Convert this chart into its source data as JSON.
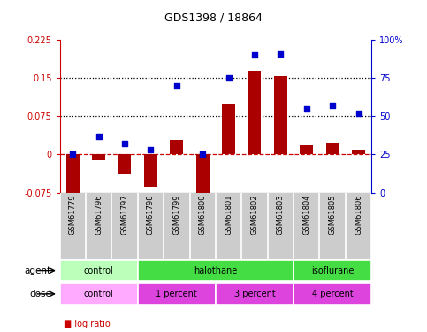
{
  "title": "GDS1398 / 18864",
  "samples": [
    "GSM61779",
    "GSM61796",
    "GSM61797",
    "GSM61798",
    "GSM61799",
    "GSM61800",
    "GSM61801",
    "GSM61802",
    "GSM61803",
    "GSM61804",
    "GSM61805",
    "GSM61806"
  ],
  "log_ratio": [
    -0.075,
    -0.012,
    -0.038,
    -0.063,
    0.028,
    -0.088,
    0.1,
    0.165,
    0.153,
    0.018,
    0.024,
    0.009
  ],
  "pct_rank": [
    25,
    37,
    32,
    28,
    70,
    25,
    75,
    90,
    91,
    55,
    57,
    52
  ],
  "ylim_left": [
    -0.075,
    0.225
  ],
  "ylim_right": [
    0,
    100
  ],
  "yticks_left": [
    -0.075,
    0,
    0.075,
    0.15,
    0.225
  ],
  "ytick_labels_left": [
    "-0.075",
    "0",
    "0.075",
    "0.15",
    "0.225"
  ],
  "yticks_right": [
    0,
    25,
    50,
    75,
    100
  ],
  "ytick_labels_right": [
    "0",
    "25",
    "50",
    "75",
    "100%"
  ],
  "hlines": [
    0.075,
    0.15
  ],
  "bar_color": "#aa0000",
  "dot_color": "#0000cc",
  "zero_line_color": "#cc0000",
  "agent_groups": [
    {
      "label": "control",
      "start": 0,
      "end": 3,
      "color": "#bbffbb"
    },
    {
      "label": "halothane",
      "start": 3,
      "end": 9,
      "color": "#44dd44"
    },
    {
      "label": "isoflurane",
      "start": 9,
      "end": 12,
      "color": "#44dd44"
    }
  ],
  "dose_groups": [
    {
      "label": "control",
      "start": 0,
      "end": 3,
      "color": "#ffaaff"
    },
    {
      "label": "1 percent",
      "start": 3,
      "end": 6,
      "color": "#dd44dd"
    },
    {
      "label": "3 percent",
      "start": 6,
      "end": 9,
      "color": "#dd44dd"
    },
    {
      "label": "4 percent",
      "start": 9,
      "end": 12,
      "color": "#dd44dd"
    }
  ],
  "legend_bar_color": "#cc0000",
  "legend_dot_color": "#0000cc",
  "background_color": "#ffffff",
  "label_bg_color": "#cccccc",
  "bar_width": 0.5
}
